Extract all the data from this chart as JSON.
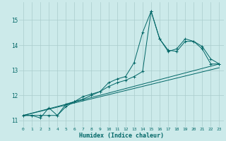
{
  "xlabel": "Humidex (Indice chaleur)",
  "bg_color": "#cceaea",
  "grid_color": "#aacccc",
  "line_color": "#006666",
  "xlim": [
    -0.5,
    23.5
  ],
  "ylim": [
    10.75,
    15.7
  ],
  "yticks": [
    11,
    12,
    13,
    14,
    15
  ],
  "xticks": [
    0,
    1,
    2,
    3,
    4,
    5,
    6,
    7,
    8,
    9,
    10,
    11,
    12,
    13,
    14,
    15,
    16,
    17,
    18,
    19,
    20,
    21,
    22,
    23
  ],
  "series1_y": [
    11.2,
    11.2,
    11.1,
    11.5,
    11.2,
    11.65,
    11.75,
    11.85,
    12.0,
    12.15,
    12.5,
    12.65,
    12.75,
    13.3,
    14.5,
    15.35,
    14.25,
    13.8,
    13.75,
    14.15,
    14.15,
    13.95,
    13.45,
    13.25
  ],
  "series2_y": [
    11.2,
    11.2,
    11.2,
    11.2,
    11.2,
    11.55,
    11.75,
    11.95,
    12.05,
    12.15,
    12.35,
    12.5,
    12.6,
    12.75,
    12.95,
    15.35,
    14.25,
    13.75,
    13.85,
    14.25,
    14.15,
    13.85,
    13.25,
    13.25
  ],
  "trend1": [
    11.2,
    13.25
  ],
  "trend2": [
    11.2,
    13.1
  ]
}
